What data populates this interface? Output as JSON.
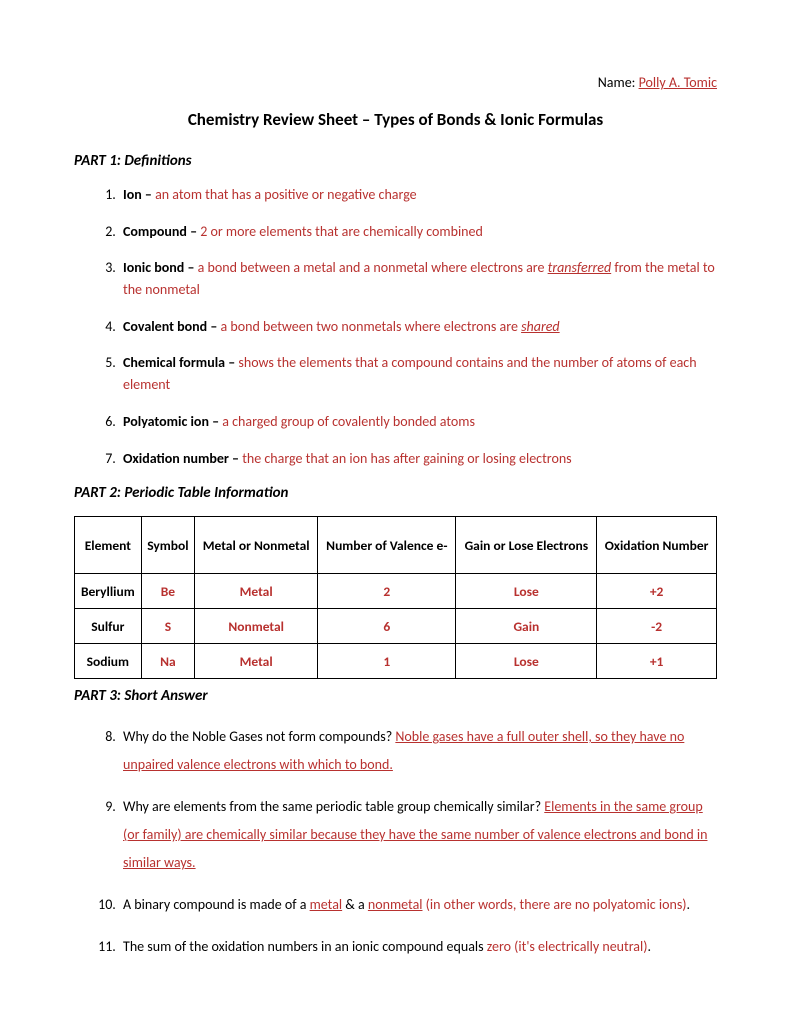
{
  "header": {
    "name_label": "Name: ",
    "name_value": "Polly A. Tomic",
    "title": "Chemistry Review Sheet – Types of Bonds & Ionic Formulas"
  },
  "part1": {
    "heading": "PART 1: Definitions",
    "items": [
      {
        "term": "Ion – ",
        "answer": "an atom that has a positive or negative charge"
      },
      {
        "term": "Compound – ",
        "answer": "2 or more elements that are chemically combined"
      },
      {
        "term": "Ionic bond – ",
        "answer_before": "a bond between a metal and a nonmetal where electrons are ",
        "emph": "transferred",
        "answer_after": " from the metal to the nonmetal"
      },
      {
        "term": "Covalent bond – ",
        "answer_before": "a bond between two nonmetals where electrons are ",
        "emph": "shared",
        "answer_after": ""
      },
      {
        "term": "Chemical formula – ",
        "answer": "shows the elements that a compound contains and the number of atoms of each element"
      },
      {
        "term": "Polyatomic ion – ",
        "answer": "a charged group of covalently bonded atoms"
      },
      {
        "term": "Oxidation number – ",
        "answer": "the charge that an ion has after gaining or losing electrons"
      }
    ]
  },
  "part2": {
    "heading": "PART 2: Periodic Table Information",
    "columns": [
      "Element",
      "Symbol",
      "Metal or Nonmetal",
      "Number of Valence e-",
      "Gain or Lose Electrons",
      "Oxidation Number"
    ],
    "rows": [
      {
        "element": "Beryllium",
        "symbol": "Be",
        "type": "Metal",
        "valence": "2",
        "gainlose": "Lose",
        "oxidation": "+2"
      },
      {
        "element": "Sulfur",
        "symbol": "S",
        "type": "Nonmetal",
        "valence": "6",
        "gainlose": "Gain",
        "oxidation": "-2"
      },
      {
        "element": "Sodium",
        "symbol": "Na",
        "type": "Metal",
        "valence": "1",
        "gainlose": "Lose",
        "oxidation": "+1"
      }
    ]
  },
  "part3": {
    "heading": "PART 3: Short Answer",
    "q8": {
      "q": "Why do the Noble Gases not form compounds? ",
      "a": "Noble gases have a full outer shell, so they have no unpaired valence electrons with which to bond."
    },
    "q9": {
      "q": "Why are elements from the same periodic table group chemically similar? ",
      "a": "Elements in the same group (or family) are chemically similar because they have the same number of valence electrons and bond in similar ways."
    },
    "q10": {
      "before": "A binary compound is made of a ",
      "a1": "metal",
      "mid": " & a ",
      "a2": "nonmetal",
      "after1": " (in other words, there are no polyatomic ions)",
      "period": "."
    },
    "q11": {
      "before": "The sum of the oxidation numbers in an ionic compound equals ",
      "a": "zero (it's electrically neutral)",
      "period": "."
    }
  }
}
